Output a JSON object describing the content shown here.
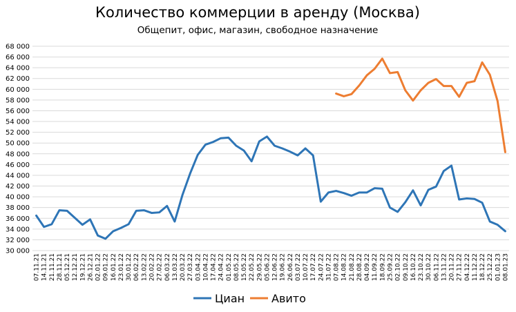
{
  "chart_data": {
    "type": "line",
    "title": "Количество коммерции в аренду (Москва)",
    "subtitle": "Общепит, офис, магазин, свободное назначение",
    "xlabel": "",
    "ylabel": "",
    "ylim": [
      30000,
      68000
    ],
    "yticks": [
      30000,
      32000,
      34000,
      36000,
      38000,
      40000,
      42000,
      44000,
      46000,
      48000,
      50000,
      52000,
      54000,
      56000,
      58000,
      60000,
      62000,
      64000,
      66000,
      68000
    ],
    "ytick_labels": [
      "30 000",
      "32 000",
      "34 000",
      "36 000",
      "38 000",
      "40 000",
      "42 000",
      "44 000",
      "46 000",
      "48 000",
      "50 000",
      "52 000",
      "54 000",
      "56 000",
      "58 000",
      "60 000",
      "62 000",
      "64 000",
      "66 000",
      "68 000"
    ],
    "grid": true,
    "legend_position": "bottom",
    "categories": [
      "07.11.21",
      "14.11.21",
      "21.11.21",
      "28.11.21",
      "05.12.21",
      "12.12.21",
      "19.12.21",
      "26.12.21",
      "02.01.22",
      "09.01.22",
      "16.01.22",
      "23.01.22",
      "30.01.22",
      "06.02.22",
      "13.02.22",
      "20.02.22",
      "27.02.22",
      "06.03.22",
      "13.03.22",
      "20.03.22",
      "27.03.22",
      "03.04.22",
      "10.04.22",
      "17.04.22",
      "24.04.22",
      "01.05.22",
      "08.05.22",
      "15.05.22",
      "22.05.22",
      "29.05.22",
      "05.06.22",
      "12.06.22",
      "19.06.22",
      "26.06.22",
      "03.07.22",
      "10.07.22",
      "17.07.22",
      "24.07.22",
      "31.07.22",
      "07.08.22",
      "14.08.22",
      "21.08.22",
      "28.08.22",
      "04.09.22",
      "11.09.22",
      "18.09.22",
      "25.09.22",
      "02.10.22",
      "09.10.22",
      "16.10.22",
      "23.10.22",
      "30.10.22",
      "06.11.22",
      "13.11.22",
      "20.11.22",
      "27.11.22",
      "04.12.22",
      "11.12.22",
      "18.12.22",
      "25.12.22",
      "01.01.23",
      "08.01.23"
    ],
    "series": [
      {
        "name": "Циан",
        "color": "#2e75b6",
        "values": [
          36500,
          34400,
          34900,
          37500,
          37400,
          36100,
          34800,
          35800,
          32800,
          32200,
          33600,
          34200,
          34900,
          37400,
          37500,
          37000,
          37100,
          38300,
          35400,
          40300,
          44300,
          47800,
          49700,
          50200,
          50900,
          51000,
          49500,
          48600,
          46600,
          50300,
          51200,
          49500,
          49000,
          48400,
          47700,
          49000,
          47700,
          39100,
          40800,
          41100,
          40700,
          40200,
          40800,
          40800,
          41600,
          41500,
          38000,
          37200,
          39000,
          41200,
          38400,
          41300,
          41900,
          44800,
          45800,
          39500,
          39700,
          39600,
          38900,
          35400,
          34800,
          33600
        ]
      },
      {
        "name": "Авито",
        "color": "#ed7d31",
        "values": [
          null,
          null,
          null,
          null,
          null,
          null,
          null,
          null,
          null,
          null,
          null,
          null,
          null,
          null,
          null,
          null,
          null,
          null,
          null,
          null,
          null,
          null,
          null,
          null,
          null,
          null,
          null,
          null,
          null,
          null,
          null,
          null,
          null,
          null,
          null,
          null,
          null,
          null,
          null,
          59200,
          58700,
          59100,
          60700,
          62600,
          63800,
          65700,
          63000,
          63200,
          59800,
          57900,
          59800,
          61200,
          61900,
          60600,
          60600,
          58600,
          61200,
          61500,
          65000,
          62700,
          57800,
          48300
        ]
      }
    ]
  }
}
